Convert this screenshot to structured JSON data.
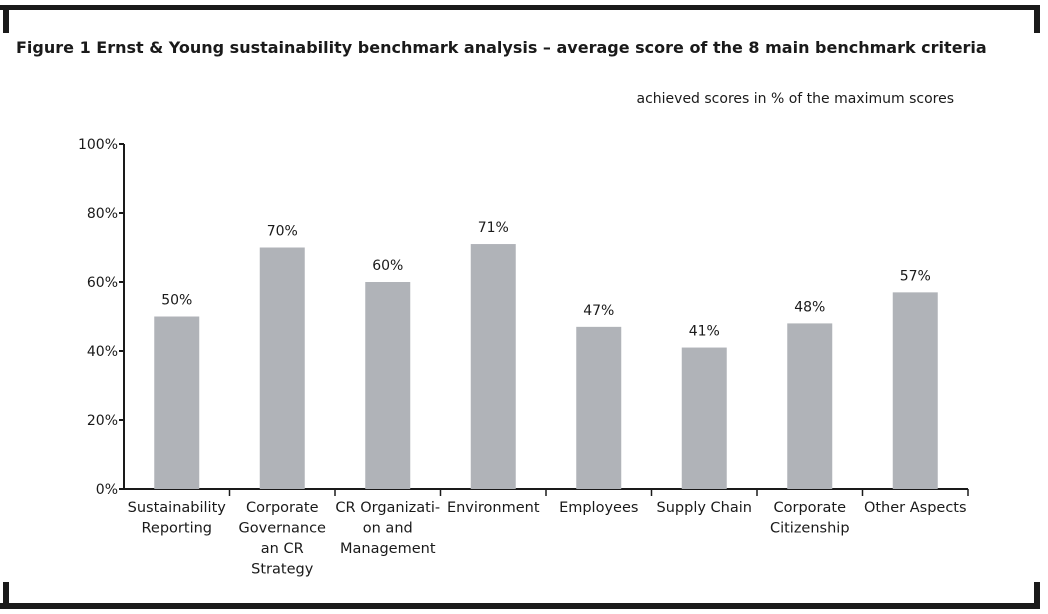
{
  "title": "Figure 1 Ernst & Young sustainability benchmark analysis – average score of the 8 main benchmark criteria",
  "chart_data": {
    "type": "bar",
    "title": "Figure 1 Ernst & Young sustainability benchmark analysis – average score of the 8 main benchmark criteria",
    "subtitle": "achieved scores in % of the maximum scores",
    "categories": [
      [
        "Sustainability",
        "Reporting"
      ],
      [
        "Corporate",
        "Governance",
        "an CR",
        "Strategy"
      ],
      [
        "CR Organizati-",
        "on and",
        "Management"
      ],
      [
        "Environment"
      ],
      [
        "Employees"
      ],
      [
        "Supply Chain"
      ],
      [
        "Corporate",
        "Citizenship"
      ],
      [
        "Other Aspects"
      ]
    ],
    "values": [
      50,
      70,
      60,
      71,
      47,
      41,
      48,
      57
    ],
    "value_labels": [
      "50%",
      "70%",
      "60%",
      "71%",
      "47%",
      "41%",
      "48%",
      "57%"
    ],
    "yticks": [
      "0%",
      "20%",
      "40%",
      "60%",
      "80%",
      "100%"
    ],
    "ylim": [
      0,
      100
    ],
    "grid": false,
    "bar_color": "#b0b3b8",
    "axis_color": "#1a1a1a"
  }
}
